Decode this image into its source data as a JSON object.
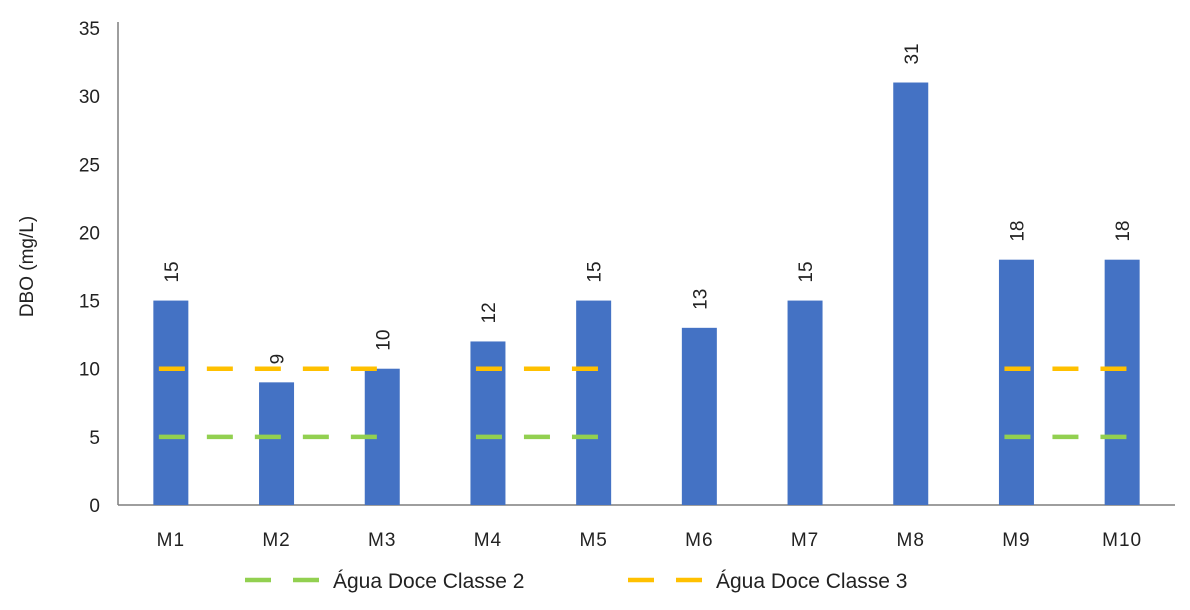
{
  "chart_data": {
    "type": "bar",
    "categories": [
      "M1",
      "M2",
      "M3",
      "M4",
      "M5",
      "M6",
      "M7",
      "M8",
      "M9",
      "M10"
    ],
    "series": [
      {
        "values": [
          15,
          9,
          10,
          12,
          15,
          13,
          15,
          31,
          18,
          18
        ],
        "color": "#4472C4"
      }
    ],
    "data_labels": [
      "15",
      "9",
      "10",
      "12",
      "15",
      "13",
      "15",
      "31",
      "18",
      "18"
    ],
    "reference_lines": [
      {
        "name": "Água Doce Classe 2",
        "value": 5,
        "color": "#92D050",
        "style": "dashed",
        "segments": [
          [
            "M1",
            "M3"
          ],
          [
            "M4",
            "M5"
          ],
          [
            "M9",
            "M10"
          ]
        ]
      },
      {
        "name": "Água Doce Classe 3",
        "value": 10,
        "color": "#FFC000",
        "style": "dashed",
        "segments": [
          [
            "M1",
            "M3"
          ],
          [
            "M4",
            "M5"
          ],
          [
            "M9",
            "M10"
          ]
        ]
      }
    ],
    "ylabel": "DBO (mg/L)",
    "xlabel": "",
    "title": "",
    "ylim": [
      0,
      35
    ],
    "yticks": [
      0,
      5,
      10,
      15,
      20,
      25,
      30,
      35
    ],
    "grid": false,
    "legend_position": "bottom"
  }
}
